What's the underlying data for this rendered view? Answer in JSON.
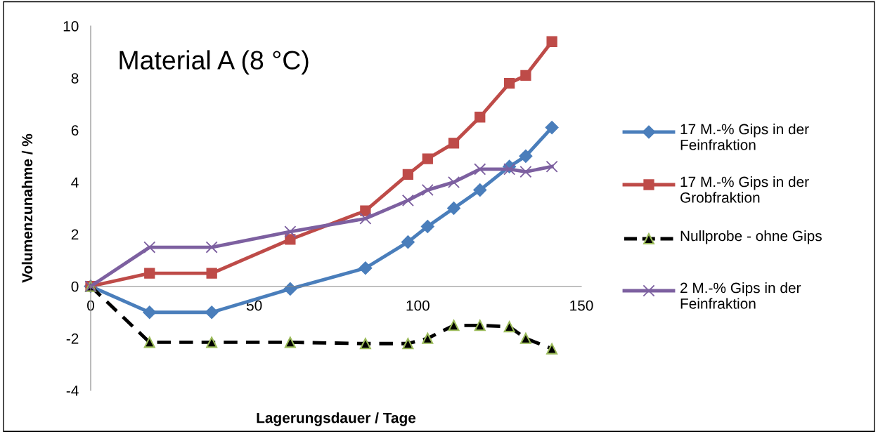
{
  "chart_data": {
    "type": "line",
    "annotations": [
      "Material A (8 °C)"
    ],
    "xlabel": "Lagerungsdauer / Tage",
    "ylabel": "Volumenzunahme / %",
    "x": [
      0,
      18,
      37,
      61,
      84,
      97,
      103,
      111,
      119,
      128,
      133,
      141
    ],
    "series": [
      {
        "name": "17 M.-% Gips in der Feinfraktion",
        "color": "#4a7ebb",
        "marker": "diamond",
        "line_style": "solid",
        "values": [
          0,
          -1.0,
          -1.0,
          -0.1,
          0.7,
          1.7,
          2.3,
          3.0,
          3.7,
          4.6,
          5.0,
          6.1
        ]
      },
      {
        "name": "17 M.-% Gips in der Grobfraktion",
        "color": "#be4b48",
        "marker": "square",
        "line_style": "solid",
        "values": [
          0,
          0.5,
          0.5,
          1.8,
          2.9,
          4.3,
          4.9,
          5.5,
          6.5,
          7.8,
          8.1,
          9.4
        ]
      },
      {
        "name": "Nullprobe - ohne Gips",
        "color": "#000000",
        "marker": "triangle",
        "line_style": "dashed",
        "values": [
          0,
          -2.15,
          -2.15,
          -2.15,
          -2.2,
          -2.2,
          -2.0,
          -1.5,
          -1.5,
          -1.55,
          -2.0,
          -2.4
        ]
      },
      {
        "name": "2 M.-% Gips in der Feinfraktion",
        "color": "#7d60a0",
        "marker": "cross",
        "line_style": "solid",
        "values": [
          0,
          1.5,
          1.5,
          2.1,
          2.6,
          3.3,
          3.7,
          4.0,
          4.5,
          4.5,
          4.4,
          4.6
        ]
      }
    ],
    "xlim": [
      0,
      150
    ],
    "xticks": [
      0,
      50,
      100,
      150
    ],
    "ylim": [
      -4,
      10
    ],
    "yticks": [
      -4,
      -2,
      0,
      2,
      4,
      6,
      8,
      10
    ],
    "grid": false,
    "legend": "right"
  }
}
